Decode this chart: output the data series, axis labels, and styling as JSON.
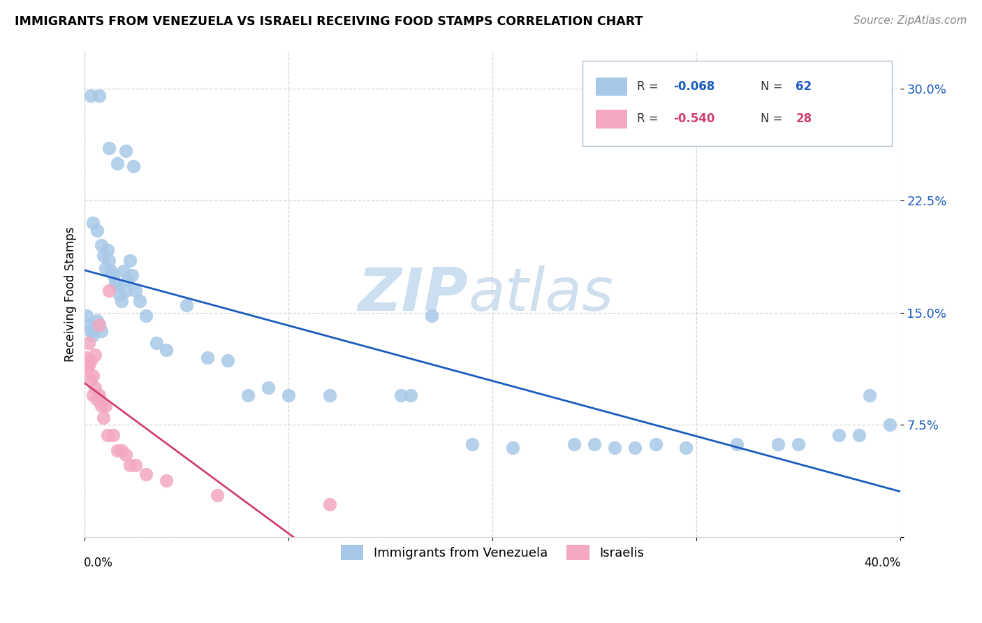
{
  "title": "IMMIGRANTS FROM VENEZUELA VS ISRAELI RECEIVING FOOD STAMPS CORRELATION CHART",
  "source": "Source: ZipAtlas.com",
  "ylabel": "Receiving Food Stamps",
  "yticks": [
    0.0,
    0.075,
    0.15,
    0.225,
    0.3
  ],
  "ytick_labels": [
    "",
    "7.5%",
    "15.0%",
    "22.5%",
    "30.0%"
  ],
  "xlim": [
    0.0,
    0.4
  ],
  "ylim": [
    0.0,
    0.325
  ],
  "legend_r1": "-0.068",
  "legend_n1": "62",
  "legend_r2": "-0.540",
  "legend_n2": "28",
  "legend_label1": "Immigrants from Venezuela",
  "legend_label2": "Israelis",
  "blue_scatter_color": "#a8c8e8",
  "pink_scatter_color": "#f4a8c0",
  "blue_line_color": "#1a5bbf",
  "pink_line_color": "#d04070",
  "grid_color": "#d5d5d5",
  "venezuela_x": [
    0.003,
    0.007,
    0.012,
    0.016,
    0.02,
    0.024,
    0.004,
    0.006,
    0.008,
    0.009,
    0.01,
    0.011,
    0.012,
    0.013,
    0.014,
    0.015,
    0.016,
    0.017,
    0.018,
    0.019,
    0.02,
    0.021,
    0.022,
    0.023,
    0.025,
    0.027,
    0.001,
    0.002,
    0.003,
    0.004,
    0.005,
    0.006,
    0.007,
    0.008,
    0.03,
    0.035,
    0.04,
    0.05,
    0.1,
    0.12,
    0.17,
    0.19,
    0.21,
    0.28,
    0.295,
    0.35,
    0.37,
    0.38,
    0.385,
    0.395,
    0.32,
    0.34,
    0.06,
    0.07,
    0.08,
    0.09,
    0.155,
    0.16,
    0.24,
    0.25,
    0.26,
    0.27
  ],
  "venezuela_y": [
    0.295,
    0.295,
    0.26,
    0.25,
    0.258,
    0.248,
    0.21,
    0.205,
    0.195,
    0.188,
    0.18,
    0.192,
    0.185,
    0.178,
    0.175,
    0.17,
    0.168,
    0.162,
    0.158,
    0.178,
    0.165,
    0.172,
    0.185,
    0.175,
    0.165,
    0.158,
    0.148,
    0.142,
    0.138,
    0.135,
    0.14,
    0.145,
    0.142,
    0.138,
    0.148,
    0.13,
    0.125,
    0.155,
    0.095,
    0.095,
    0.148,
    0.062,
    0.06,
    0.062,
    0.06,
    0.062,
    0.068,
    0.068,
    0.095,
    0.075,
    0.062,
    0.062,
    0.12,
    0.118,
    0.095,
    0.1,
    0.095,
    0.095,
    0.062,
    0.062,
    0.06,
    0.06
  ],
  "israel_x": [
    0.001,
    0.001,
    0.002,
    0.002,
    0.003,
    0.003,
    0.004,
    0.004,
    0.005,
    0.005,
    0.006,
    0.007,
    0.007,
    0.008,
    0.009,
    0.01,
    0.011,
    0.012,
    0.014,
    0.016,
    0.018,
    0.02,
    0.022,
    0.025,
    0.03,
    0.04,
    0.065,
    0.12
  ],
  "israel_y": [
    0.12,
    0.112,
    0.13,
    0.115,
    0.118,
    0.105,
    0.108,
    0.095,
    0.122,
    0.1,
    0.092,
    0.142,
    0.095,
    0.088,
    0.08,
    0.088,
    0.068,
    0.165,
    0.068,
    0.058,
    0.058,
    0.055,
    0.048,
    0.048,
    0.042,
    0.038,
    0.028,
    0.022
  ]
}
